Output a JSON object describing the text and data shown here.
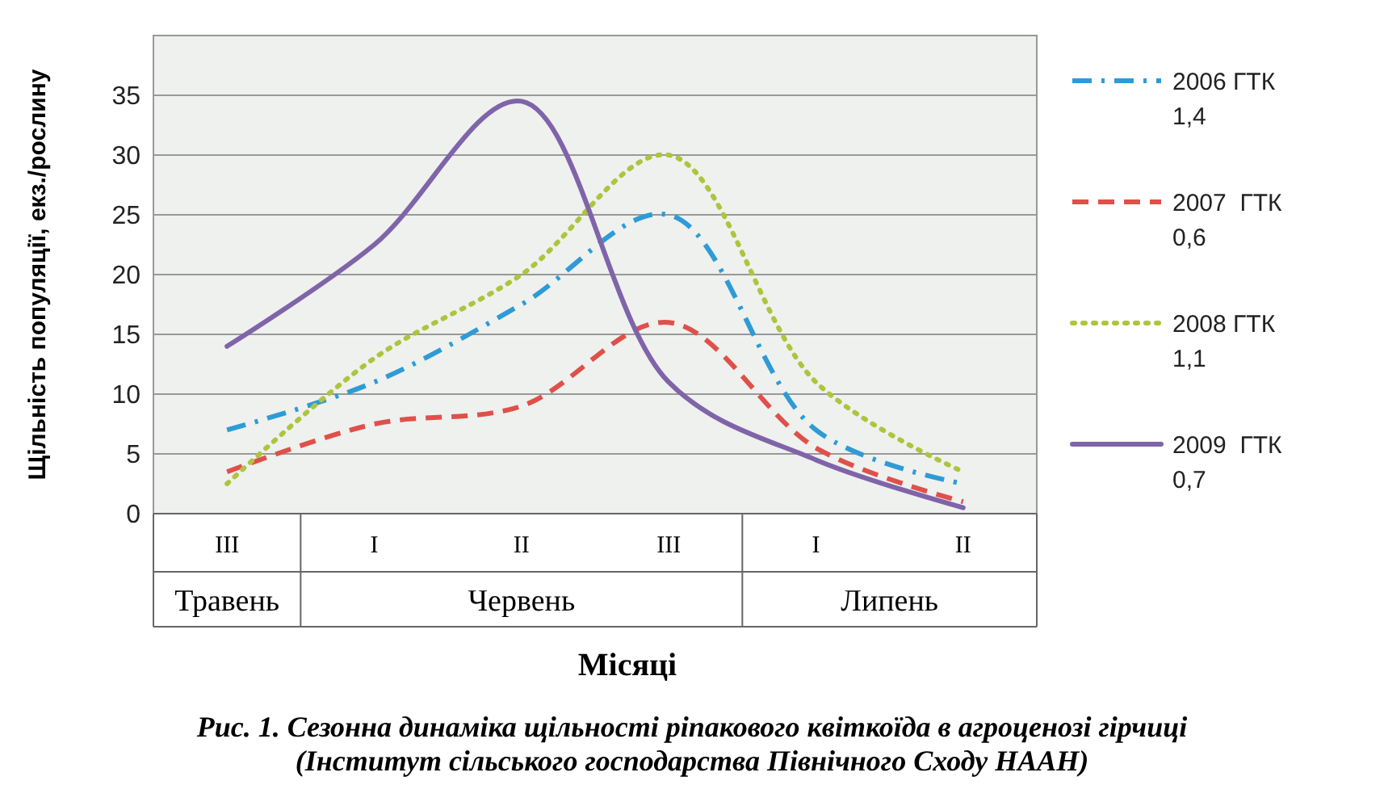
{
  "chart_data": {
    "type": "line",
    "title": "Рис. 1. Сезонна динаміка щільності ріпакового квіткоїда в агроценозі гірчиці",
    "subtitle": "(Інститут сільського господарства Північного Сходу НААН)",
    "xlabel": "Місяці",
    "ylabel": "Щільність популяції, екз./рослину",
    "categories": [
      "III",
      "I",
      "II",
      "III",
      "I",
      "II"
    ],
    "annotations": [
      "Травень",
      "Червень",
      "Липень"
    ],
    "ylim": [
      0,
      40
    ],
    "yticks": [
      0,
      5,
      10,
      15,
      20,
      25,
      30,
      35
    ],
    "grid": "y",
    "legend": "right",
    "series": [
      {
        "name": "2006 ГТК 1,4",
        "color": "#2e9bd6",
        "line_style": "dashdot",
        "values": [
          7,
          11,
          17.5,
          25,
          7,
          2.5
        ]
      },
      {
        "name": "2007  ГТК 0,6",
        "color": "#e0504a",
        "line_style": "dashed",
        "values": [
          3.5,
          7.5,
          9,
          16,
          5.5,
          1
        ]
      },
      {
        "name": "2008 ГТК 1,1",
        "color": "#aec43c",
        "line_style": "dotted",
        "values": [
          2.5,
          13,
          20,
          30,
          11,
          3.5
        ]
      },
      {
        "name": "2009  ГТК 0,7",
        "color": "#8064a9",
        "line_style": "solid",
        "values": [
          14,
          22.5,
          34.5,
          11,
          4.5,
          0.5
        ]
      }
    ]
  }
}
